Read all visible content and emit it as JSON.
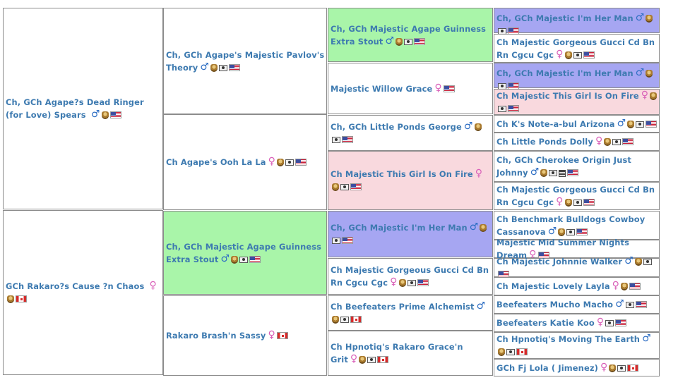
{
  "page": {
    "gen1": [
      {
        "name": "Ch, GCh Agape?s Dead Ringer (for Love) Spears",
        "icons": [
          "male-icon",
          "medal-icon",
          "flag-us-icon"
        ],
        "bg": "#ffffff"
      },
      {
        "name": "GCh Rakaro?s Cause ?n Chaos",
        "icons": [
          "female-icon",
          "medal-icon",
          "flag-ca-icon"
        ],
        "bg": "#ffffff"
      }
    ],
    "gen2": [
      {
        "name": "Ch, GCh Agape's Majestic Pavlov's Theory",
        "icons": [
          "male-icon",
          "medal-icon",
          "camera-icon",
          "flag-us-icon"
        ],
        "bg": "#ffffff"
      },
      {
        "name": "Ch Agape's Ooh La La",
        "icons": [
          "female-icon",
          "medal-icon",
          "camera-icon",
          "flag-us-icon"
        ],
        "bg": "#ffffff"
      },
      {
        "name": "Ch, GCh Majestic Agape Guinness Extra Stout",
        "icons": [
          "male-icon",
          "medal-icon",
          "camera-icon",
          "flag-us-icon"
        ],
        "bg": "#a9f5a9"
      },
      {
        "name": "Rakaro Brash'n Sassy",
        "icons": [
          "female-icon",
          "flag-ca-icon"
        ],
        "bg": "#ffffff"
      }
    ],
    "gen3": [
      {
        "name": "Ch, GCh Majestic Agape Guinness Extra Stout",
        "icons": [
          "male-icon",
          "medal-icon",
          "camera-icon",
          "flag-us-icon"
        ],
        "bg": "#a9f5a9"
      },
      {
        "name": "Majestic Willow Grace",
        "icons": [
          "female-icon",
          "flag-us-icon"
        ],
        "bg": "#ffffff"
      },
      {
        "name": "Ch, GCh Little Ponds George",
        "icons": [
          "male-icon",
          "medal-icon",
          "camera-icon",
          "flag-us-icon"
        ],
        "bg": "#ffffff"
      },
      {
        "name": "Ch Majestic This Girl Is On Fire",
        "icons": [
          "female-icon",
          "medal-icon",
          "camera-icon",
          "flag-us-icon"
        ],
        "bg": "#f9d9de"
      },
      {
        "name": "Ch, GCh Majestic I'm Her Man",
        "icons": [
          "male-icon",
          "medal-icon",
          "camera-icon",
          "flag-us-icon"
        ],
        "bg": "#a6a6f2"
      },
      {
        "name": "Ch Majestic Gorgeous Gucci Cd Bn Rn Cgcu Cgc",
        "icons": [
          "female-icon",
          "medal-icon",
          "camera-icon",
          "flag-us-icon"
        ],
        "bg": "#ffffff"
      },
      {
        "name": "Ch Beefeaters Prime Alchemist",
        "icons": [
          "male-icon",
          "medal-icon",
          "camera-icon",
          "flag-ca-icon"
        ],
        "bg": "#ffffff"
      },
      {
        "name": "Ch Hpnotiq's Rakaro Grace'n Grit",
        "icons": [
          "female-icon",
          "medal-icon",
          "camera-icon",
          "flag-ca-icon"
        ],
        "bg": "#ffffff"
      }
    ],
    "gen4": [
      {
        "name": "Ch, GCh Majestic I'm Her Man",
        "icons": [
          "male-icon",
          "medal-icon",
          "camera-icon",
          "flag-us-icon"
        ],
        "bg": "#a6a6f2"
      },
      {
        "name": "Ch Majestic Gorgeous Gucci Cd Bn Rn Cgcu Cgc",
        "icons": [
          "female-icon",
          "medal-icon",
          "camera-icon",
          "flag-us-icon"
        ],
        "bg": "#ffffff"
      },
      {
        "name": "Ch, GCh Majestic I'm Her Man",
        "icons": [
          "male-icon",
          "medal-icon",
          "camera-icon",
          "flag-us-icon"
        ],
        "bg": "#a6a6f2"
      },
      {
        "name": "Ch Majestic This Girl Is On Fire",
        "icons": [
          "female-icon",
          "medal-icon",
          "camera-icon",
          "flag-us-icon"
        ],
        "bg": "#f9d9de"
      },
      {
        "name": "Ch K's Note-a-bul Arizona",
        "icons": [
          "male-icon",
          "medal-icon",
          "camera-icon",
          "flag-us-icon"
        ],
        "bg": "#ffffff"
      },
      {
        "name": "Ch Little Ponds Dolly",
        "icons": [
          "female-icon",
          "medal-icon",
          "camera-icon",
          "flag-us-icon"
        ],
        "bg": "#ffffff"
      },
      {
        "name": "Ch, GCh Cherokee Origin Just Johnny",
        "icons": [
          "male-icon",
          "medal-icon",
          "camera-icon",
          "film-icon",
          "flag-us-icon"
        ],
        "bg": "#ffffff"
      },
      {
        "name": "Ch Majestic Gorgeous Gucci Cd Bn Rn Cgcu Cgc",
        "icons": [
          "female-icon",
          "medal-icon",
          "camera-icon",
          "flag-us-icon"
        ],
        "bg": "#ffffff"
      },
      {
        "name": "Ch Benchmark Bulldogs Cowboy Cassanova",
        "icons": [
          "male-icon",
          "medal-icon",
          "camera-icon",
          "flag-us-icon"
        ],
        "bg": "#ffffff"
      },
      {
        "name": "Majestic Mid Summer Nights Dream",
        "icons": [
          "female-icon",
          "flag-us-icon"
        ],
        "bg": "#ffffff"
      },
      {
        "name": "Ch Majestic Johnnie Walker",
        "icons": [
          "male-icon",
          "medal-icon",
          "camera-icon",
          "flag-us-icon"
        ],
        "bg": "#ffffff"
      },
      {
        "name": "Ch Majestic Lovely Layla",
        "icons": [
          "female-icon",
          "medal-icon",
          "flag-us-icon"
        ],
        "bg": "#ffffff"
      },
      {
        "name": "Beefeaters Mucho Macho",
        "icons": [
          "male-icon",
          "camera-icon",
          "flag-us-icon"
        ],
        "bg": "#ffffff"
      },
      {
        "name": "Beefeaters Katie Koo",
        "icons": [
          "female-icon",
          "camera-icon",
          "flag-us-icon"
        ],
        "bg": "#ffffff"
      },
      {
        "name": "Ch Hpnotiq's Moving The Earth",
        "icons": [
          "male-icon",
          "medal-icon",
          "camera-icon",
          "flag-ca-icon"
        ],
        "bg": "#ffffff"
      },
      {
        "name": "GCh Fj Lola ( Jimenez)",
        "icons": [
          "female-icon",
          "medal-icon",
          "camera-icon",
          "flag-ca-icon"
        ],
        "bg": "#ffffff"
      }
    ],
    "colors": {
      "link_text": "#3d7ab0",
      "grid_border": "#8c8c8c",
      "male_symbol": "#2f6fc4",
      "female_symbol": "#d95fb8"
    }
  }
}
